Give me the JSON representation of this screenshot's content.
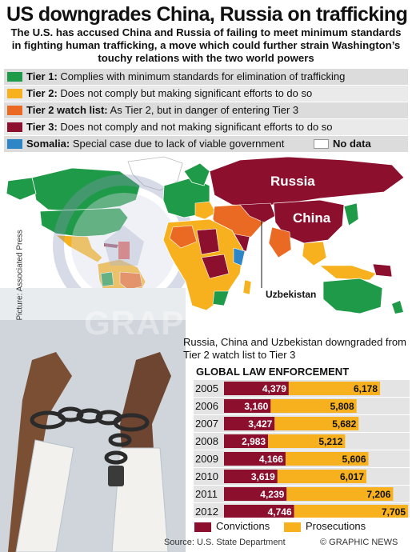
{
  "headline": "US downgrades China, Russia on trafficking",
  "standfirst": "The U.S. has accused China and Russia of failing to meet minimum standards in fighting human trafficking, a move which could further strain Washington’s touchy relations with the two world powers",
  "legend": [
    {
      "name": "Tier 1:",
      "desc": "Complies with minimum standards for elimination of trafficking",
      "color": "#1f9a48"
    },
    {
      "name": "Tier 2:",
      "desc": "Does not comply but making significant efforts to do so",
      "color": "#f7b11e"
    },
    {
      "name": "Tier 2 watch list:",
      "desc": "As Tier 2, but in danger of entering Tier 3",
      "color": "#ea6a24"
    },
    {
      "name": "Tier 3:",
      "desc": "Does not comply and not making significant efforts to do so",
      "color": "#8c0f2e"
    },
    {
      "name": "Somalia:",
      "desc": "Special case due to lack of viable government",
      "color": "#2f86c6"
    }
  ],
  "no_data_label": "No data",
  "map": {
    "russia_label": "Russia",
    "china_label": "China",
    "uzbekistan_label": "Uzbekistan",
    "ocean_color": "#ffffff",
    "seal_text": "UNITED STATES GOVERNMENT"
  },
  "photo_credit": "Picture: Associated Press",
  "watermark": "GRAPHIC NEWS",
  "note": "Russia, China and Uzbekistan downgraded from Tier 2 watch list to Tier 3",
  "chart_data": {
    "type": "bar",
    "title": "GLOBAL LAW ENFORCEMENT",
    "stacked": true,
    "orientation": "horizontal",
    "categories": [
      "2005",
      "2006",
      "2007",
      "2008",
      "2009",
      "2010",
      "2011",
      "2012"
    ],
    "series": [
      {
        "name": "Convictions",
        "color": "#8c0f2e",
        "values": [
          4379,
          3160,
          3427,
          2983,
          4166,
          3619,
          4239,
          4746
        ],
        "labels": [
          "4,379",
          "3,160",
          "3,427",
          "2,983",
          "4,166",
          "3,619",
          "4,239",
          "4,746"
        ]
      },
      {
        "name": "Prosecutions",
        "color": "#f7b11e",
        "values": [
          6178,
          5808,
          5682,
          5212,
          5606,
          6017,
          7206,
          7705
        ],
        "labels": [
          "6,178",
          "5,808",
          "5,682",
          "5,212",
          "5,606",
          "6,017",
          "7,206",
          "7,705"
        ]
      }
    ]
  },
  "source": "Source: U.S. State Department",
  "copyright": "© GRAPHIC NEWS"
}
